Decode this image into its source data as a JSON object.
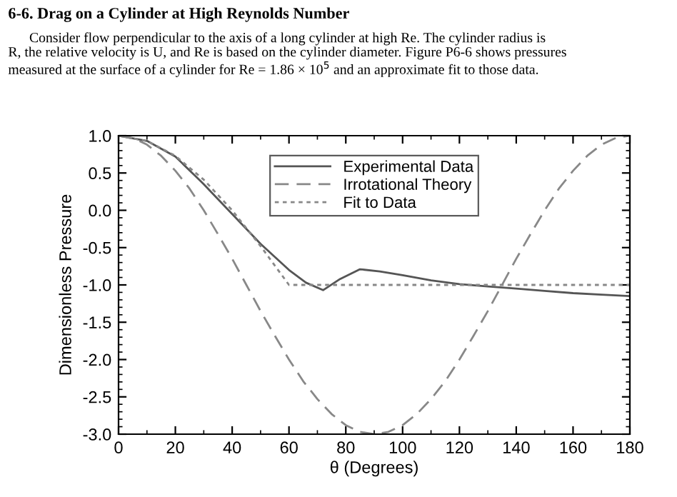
{
  "chart_data": {
    "type": "line",
    "title": "6-6. Drag on a Cylinder at High Reynolds Number",
    "subtitle": "      Consider flow perpendicular to the axis of a long cylinder at high Re. The cylinder radius is\nR, the relative velocity is U, and Re is based on the cylinder diameter. Figure P6-6 shows pressures\nmeasured at the surface of a cylinder for Re = 1.86 × 10$^{5}$ and an approximate fit to those data.",
    "xlabel": "θ (Degrees)",
    "ylabel": "Dimensionless Pressure",
    "series": [
      {
        "name": "Experimental Data",
        "color": "#555555",
        "line_style": "solid",
        "x": [
          0,
          10,
          20,
          30,
          40,
          50,
          60,
          66,
          72,
          78,
          85,
          92,
          100,
          110,
          120,
          130,
          140,
          150,
          160,
          170,
          180
        ],
        "values": [
          1.0,
          0.93,
          0.72,
          0.35,
          -0.05,
          -0.45,
          -0.8,
          -0.97,
          -1.07,
          -0.92,
          -0.79,
          -0.82,
          -0.87,
          -0.94,
          -0.99,
          -1.02,
          -1.05,
          -1.08,
          -1.11,
          -1.13,
          -1.15
        ]
      },
      {
        "name": "Irrotational Theory",
        "color": "#888888",
        "line_style": "dashed",
        "x": [
          0,
          5,
          10,
          15,
          20,
          25,
          30,
          35,
          40,
          45,
          50,
          55,
          60,
          65,
          70,
          75,
          80,
          85,
          90,
          95,
          100,
          105,
          110,
          115,
          120,
          125,
          130,
          135,
          140,
          145,
          150,
          155,
          160,
          165,
          170,
          175,
          180
        ],
        "values": [
          1.0,
          0.97,
          0.88,
          0.73,
          0.53,
          0.29,
          0.0,
          -0.32,
          -0.65,
          -1.0,
          -1.35,
          -1.68,
          -2.0,
          -2.29,
          -2.53,
          -2.73,
          -2.88,
          -2.97,
          -3.0,
          -2.97,
          -2.88,
          -2.73,
          -2.53,
          -2.29,
          -2.0,
          -1.68,
          -1.35,
          -1.0,
          -0.65,
          -0.32,
          0.0,
          0.29,
          0.53,
          0.73,
          0.88,
          0.97,
          1.0
        ]
      },
      {
        "name": "Fit to Data",
        "color": "#888888",
        "line_style": "dotted",
        "x": [
          0,
          10,
          20,
          30,
          40,
          50,
          60,
          180
        ],
        "values": [
          1.0,
          0.93,
          0.73,
          0.41,
          0.0,
          -0.48,
          -1.0,
          -1.0
        ]
      }
    ],
    "xlim": [
      0,
      180
    ],
    "xticks": [
      0,
      20,
      40,
      60,
      80,
      100,
      120,
      140,
      160,
      180
    ],
    "ylim": [
      -3.0,
      1.0
    ],
    "yticks": [
      {
        "value": -3.0,
        "label": "-3.0"
      },
      {
        "value": -2.5,
        "label": "-2.5"
      },
      {
        "value": -2.0,
        "label": "-2.0"
      },
      {
        "value": -1.5,
        "label": "-1.5"
      },
      {
        "value": -1.0,
        "label": "-1.0"
      },
      {
        "value": -0.5,
        "label": "-0.5"
      },
      {
        "value": 0.0,
        "label": "0.0"
      },
      {
        "value": 0.5,
        "label": "0.5"
      },
      {
        "value": 1.0,
        "label": "1.0"
      }
    ],
    "grid": false,
    "legend": "top",
    "marker": "none"
  }
}
